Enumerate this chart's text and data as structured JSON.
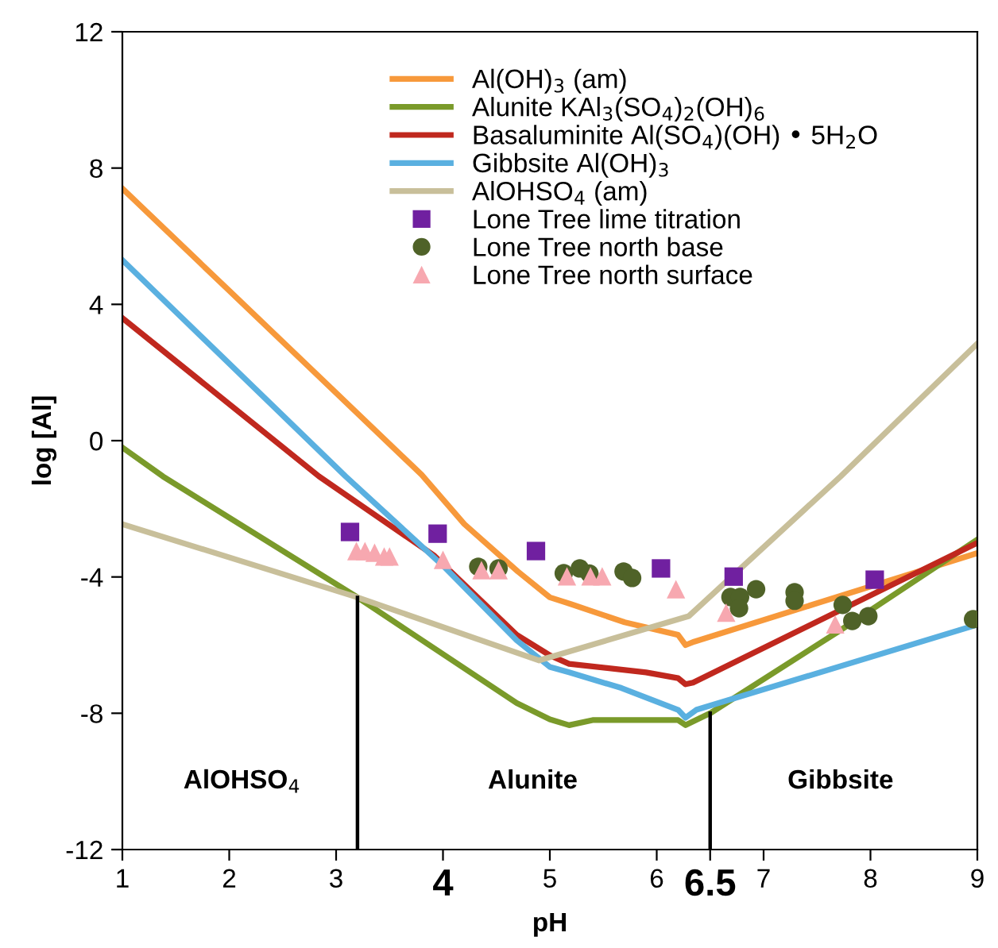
{
  "chart_data": {
    "type": "line",
    "xlabel": "pH",
    "ylabel": "log [Al]",
    "xlim": [
      1,
      9
    ],
    "ylim": [
      -12,
      12
    ],
    "xticks": [
      1,
      2,
      3,
      {
        "value": 4,
        "label": "4"
      },
      5,
      6,
      {
        "value": 6.5,
        "label": "6.5"
      },
      7,
      8,
      9
    ],
    "yticks": [
      -12,
      -8,
      -4,
      0,
      4,
      8,
      12
    ],
    "grid": false,
    "legend": "top",
    "series": [
      {
        "name": "Al(OH)$_{3}$ (am)",
        "color": "#f7993b",
        "x": [
          1,
          2,
          3,
          3.8,
          4.2,
          4.7,
          5.0,
          5.2,
          5.7,
          6.2,
          6.27,
          6.35,
          9
        ],
        "values": [
          7.4,
          4.4,
          1.4,
          -1.0,
          -2.45,
          -3.84,
          -4.6,
          -4.8,
          -5.33,
          -5.7,
          -6.0,
          -5.9,
          -3.3
        ]
      },
      {
        "name": "Alunite KAl$_{3}$(SO$_{4}$)$_{2}$(OH)$_{6}$",
        "color": "#7a9a2a",
        "x": [
          1,
          1.38,
          3.2,
          4.69,
          5.0,
          5.18,
          5.4,
          6.2,
          6.27,
          6.5,
          7.72,
          9
        ],
        "values": [
          -0.2,
          -1.05,
          -4.6,
          -7.7,
          -8.18,
          -8.35,
          -8.2,
          -8.2,
          -8.35,
          -8.0,
          -5.56,
          -2.9
        ]
      },
      {
        "name": "Basaluminite Al(SO$_{4}$)(OH) • 5H$_{2}$O",
        "color": "#c0281e",
        "x": [
          1,
          2.84,
          3.92,
          4.69,
          5.0,
          5.18,
          5.9,
          6.2,
          6.27,
          6.34,
          9
        ],
        "values": [
          3.6,
          -1.05,
          -3.38,
          -5.7,
          -6.3,
          -6.55,
          -6.8,
          -6.97,
          -7.15,
          -7.1,
          -3.0
        ]
      },
      {
        "name": "Gibbsite Al(OH)$_{3}$",
        "color": "#5ab0e0",
        "x": [
          1,
          3.09,
          4.01,
          4.69,
          5.0,
          5.18,
          5.67,
          6.2,
          6.27,
          6.37,
          9
        ],
        "values": [
          5.3,
          -1.05,
          -3.7,
          -5.86,
          -6.64,
          -6.8,
          -7.26,
          -7.9,
          -8.13,
          -7.9,
          -5.4
        ]
      },
      {
        "name": "AlOHSO$_{4}$ (am)",
        "color": "#c8bf9a",
        "x": [
          1,
          3.2,
          4.9,
          6.3,
          7.72,
          9
        ],
        "values": [
          -2.45,
          -4.6,
          -6.45,
          -5.15,
          -1.05,
          2.85
        ]
      },
      {
        "name": "Lone Tree lime titration",
        "color": "#7020a0",
        "type": "scatter",
        "marker": "square",
        "x": [
          3.13,
          3.95,
          4.87,
          6.04,
          6.72,
          8.04
        ],
        "values": [
          -2.68,
          -2.73,
          -3.24,
          -3.75,
          -3.99,
          -4.08
        ]
      },
      {
        "name": "Lone Tree north base",
        "color": "#4f6228",
        "type": "scatter",
        "marker": "circle",
        "x": [
          4.33,
          4.52,
          5.13,
          5.28,
          5.37,
          5.69,
          5.77,
          6.69,
          6.78,
          6.77,
          6.93,
          7.29,
          7.29,
          7.74,
          7.83,
          7.98,
          8.96
        ],
        "values": [
          -3.7,
          -3.75,
          -3.89,
          -3.75,
          -3.9,
          -3.84,
          -4.03,
          -4.59,
          -4.59,
          -4.92,
          -4.36,
          -4.45,
          -4.7,
          -4.82,
          -5.29,
          -5.15,
          -5.24
        ]
      },
      {
        "name": "Lone Tree north surface",
        "color": "#f7a8b0",
        "type": "scatter",
        "marker": "triangle",
        "x": [
          3.19,
          3.27,
          3.36,
          3.45,
          3.5,
          4.0,
          4.36,
          4.52,
          5.16,
          5.38,
          5.49,
          6.18,
          6.65,
          7.67
        ],
        "values": [
          -3.24,
          -3.24,
          -3.29,
          -3.4,
          -3.4,
          -3.5,
          -3.8,
          -3.8,
          -3.98,
          -3.98,
          -3.98,
          -4.36,
          -5.05,
          -5.39
        ]
      },
      {
        "color": "#000000",
        "x": [
          3.2,
          3.2
        ],
        "values": [
          -12,
          -4.6
        ]
      },
      {
        "color": "#000000",
        "x": [
          6.5,
          6.5
        ],
        "values": [
          -12,
          -8.0
        ]
      }
    ],
    "annotations": [
      "AlOHSO$_{4}$",
      "Alunite",
      "Gibbsite"
    ]
  }
}
